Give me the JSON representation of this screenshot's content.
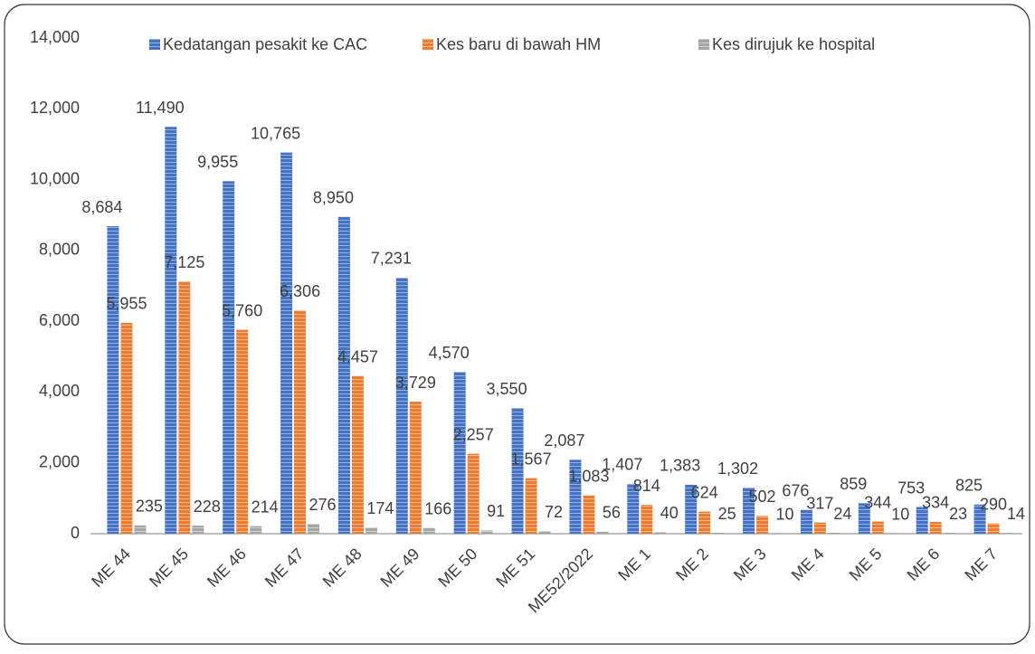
{
  "chart_data": {
    "type": "bar",
    "categories": [
      "ME 44",
      "ME 45",
      "ME 46",
      "ME 47",
      "ME 48",
      "ME 49",
      "ME 50",
      "ME 51",
      "ME52/2022",
      "ME 1",
      "ME 2",
      "ME 3",
      "ME 4",
      "ME 5",
      "ME 6",
      "ME 7"
    ],
    "series": [
      {
        "name": "Kedatangan pesakit ke CAC",
        "color": "#4472c4",
        "values": [
          8684,
          11490,
          9955,
          10765,
          8950,
          7231,
          4570,
          3550,
          2087,
          1407,
          1383,
          1302,
          676,
          859,
          753,
          825
        ],
        "value_labels": [
          "8,684",
          "11,490",
          "9,955",
          "10,765",
          "8,950",
          "7,231",
          "4,570",
          "3,550",
          "2,087",
          "1,407",
          "1,383",
          "1,302",
          "676",
          "859",
          "753",
          "825"
        ]
      },
      {
        "name": "Kes baru di bawah HM",
        "color": "#ed7d31",
        "values": [
          5955,
          7125,
          5760,
          6306,
          4457,
          3729,
          2257,
          1567,
          1083,
          814,
          624,
          502,
          317,
          344,
          334,
          290
        ],
        "value_labels": [
          "5,955",
          "7,125",
          "5,760",
          "6,306",
          "4,457",
          "3,729",
          "2,257",
          "1,567",
          "1,083",
          "814",
          "624",
          "502",
          "317",
          "344",
          "334",
          "290"
        ]
      },
      {
        "name": "Kes dirujuk ke hospital",
        "color": "#a5a5a5",
        "values": [
          235,
          228,
          214,
          276,
          174,
          166,
          91,
          72,
          56,
          40,
          25,
          10,
          24,
          10,
          23,
          14
        ],
        "value_labels": [
          "235",
          "228",
          "214",
          "276",
          "174",
          "166",
          "91",
          "72",
          "56",
          "40",
          "25",
          "10",
          "24",
          "10",
          "23",
          "14"
        ]
      }
    ],
    "ylim": [
      0,
      14000
    ],
    "yticks": [
      0,
      {
        "value": 2000,
        "label": "2,000"
      },
      {
        "value": 4000,
        "label": "4,000"
      },
      {
        "value": 6000,
        "label": "6,000"
      },
      {
        "value": 8000,
        "label": "8,000"
      },
      {
        "value": 10000,
        "label": "10,000"
      },
      {
        "value": 12000,
        "label": "12,000"
      },
      {
        "value": 14000,
        "label": "14,000"
      }
    ],
    "legend": "top",
    "grid": false
  }
}
